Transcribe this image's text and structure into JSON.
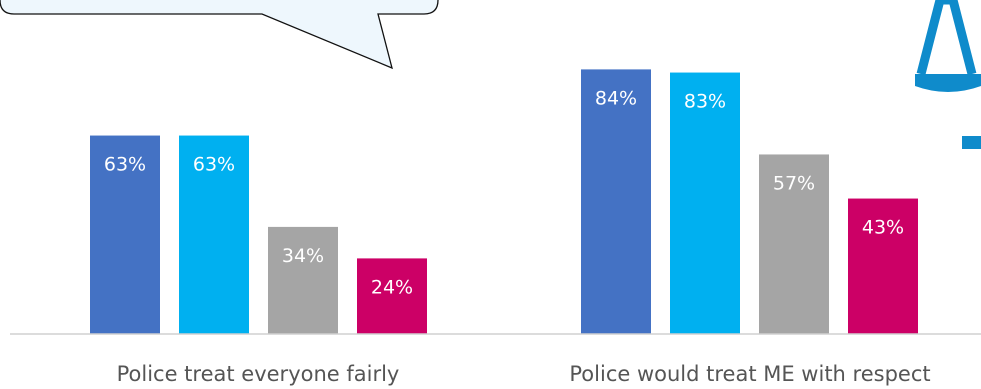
{
  "chart_data": {
    "type": "bar",
    "categories": [
      "Police treat everyone fairly",
      "Police would treat ME with respect"
    ],
    "series": [
      {
        "color": "#4472C4",
        "values": [
          63,
          84
        ]
      },
      {
        "color": "#00B0F0",
        "values": [
          63,
          83
        ]
      },
      {
        "color": "#A5A5A5",
        "values": [
          34,
          57
        ]
      },
      {
        "color": "#CC0066",
        "values": [
          24,
          43
        ]
      }
    ],
    "value_suffix": "%",
    "ylim": [
      0,
      90
    ],
    "grid": false,
    "legend": "none",
    "data_label_color": "#FFFFFF"
  },
  "decorations": {
    "callout_bubble": "speech-callout",
    "logo_icon": "scales-of-justice-icon",
    "legend_marker_color": "#0F8BCB"
  }
}
